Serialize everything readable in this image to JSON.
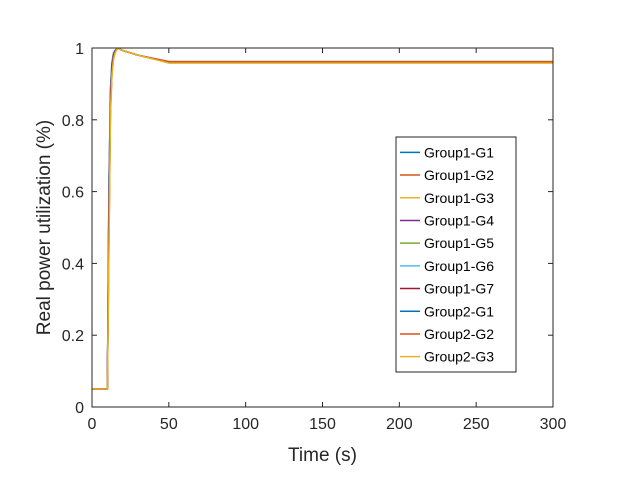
{
  "chart_data": {
    "type": "line",
    "title": "",
    "xlabel": "Time (s)",
    "ylabel": "Real power utilization (%)",
    "xlim": [
      0,
      300
    ],
    "ylim": [
      0,
      1
    ],
    "xticks": [
      0,
      50,
      100,
      150,
      200,
      250,
      300
    ],
    "yticks": [
      0,
      0.2,
      0.4,
      0.6,
      0.8,
      1
    ],
    "ytick_labels": [
      "0",
      "0.2",
      "0.4",
      "0.6",
      "0.8",
      "1"
    ],
    "grid": false,
    "legend_position": "right",
    "series": [
      {
        "name": "Group1-G1",
        "color": "#0072BD",
        "x": [
          0,
          10,
          11,
          12,
          13,
          14,
          15,
          16,
          17,
          18,
          20,
          30,
          50,
          300
        ],
        "y": [
          0.05,
          0.05,
          0.6,
          0.88,
          0.96,
          0.985,
          0.993,
          0.997,
          0.999,
          0.997,
          0.993,
          0.98,
          0.96,
          0.96
        ]
      },
      {
        "name": "Group1-G2",
        "color": "#D95319",
        "x": [
          0,
          10,
          11,
          12,
          13,
          14,
          15,
          16,
          17,
          18,
          20,
          30,
          50,
          300
        ],
        "y": [
          0.05,
          0.05,
          0.55,
          0.86,
          0.95,
          0.98,
          0.991,
          0.996,
          0.999,
          0.997,
          0.993,
          0.98,
          0.96,
          0.96
        ]
      },
      {
        "name": "Group1-G3",
        "color": "#EDB120",
        "x": [
          0,
          10,
          11,
          12,
          13,
          14,
          15,
          16,
          17,
          18,
          20,
          30,
          50,
          300
        ],
        "y": [
          0.05,
          0.05,
          0.5,
          0.84,
          0.94,
          0.975,
          0.99,
          0.996,
          0.999,
          0.997,
          0.993,
          0.98,
          0.96,
          0.96
        ]
      },
      {
        "name": "Group1-G4",
        "color": "#7E2F8E",
        "x": [
          0,
          10,
          11,
          12,
          13,
          14,
          15,
          16,
          17,
          18,
          20,
          30,
          50,
          300
        ],
        "y": [
          0.05,
          0.05,
          0.58,
          0.87,
          0.955,
          0.982,
          0.992,
          0.997,
          0.999,
          0.997,
          0.993,
          0.98,
          0.96,
          0.96
        ]
      },
      {
        "name": "Group1-G5",
        "color": "#77AC30",
        "x": [
          0,
          10,
          11,
          12,
          13,
          14,
          15,
          16,
          17,
          18,
          20,
          30,
          50,
          300
        ],
        "y": [
          0.05,
          0.05,
          0.52,
          0.85,
          0.945,
          0.978,
          0.99,
          0.996,
          0.999,
          0.997,
          0.993,
          0.98,
          0.96,
          0.96
        ]
      },
      {
        "name": "Group1-G6",
        "color": "#4DBEEE",
        "x": [
          0,
          10,
          11,
          12,
          13,
          14,
          15,
          16,
          17,
          18,
          20,
          30,
          50,
          300
        ],
        "y": [
          0.05,
          0.05,
          0.62,
          0.89,
          0.962,
          0.986,
          0.994,
          0.997,
          0.999,
          0.997,
          0.993,
          0.98,
          0.96,
          0.96
        ]
      },
      {
        "name": "Group1-G7",
        "color": "#A2142F",
        "x": [
          0,
          10,
          11,
          12,
          13,
          14,
          15,
          16,
          17,
          18,
          20,
          30,
          50,
          300
        ],
        "y": [
          0.05,
          0.05,
          0.56,
          0.865,
          0.952,
          0.981,
          0.992,
          0.996,
          0.999,
          0.997,
          0.993,
          0.98,
          0.96,
          0.96
        ]
      },
      {
        "name": "Group2-G1",
        "color": "#0072BD",
        "x": [
          0,
          10,
          11,
          12,
          13,
          14,
          15,
          16,
          17,
          18,
          20,
          30,
          50,
          300
        ],
        "y": [
          0.05,
          0.05,
          0.48,
          0.83,
          0.935,
          0.972,
          0.988,
          0.995,
          0.999,
          0.997,
          0.993,
          0.98,
          0.962,
          0.962
        ]
      },
      {
        "name": "Group2-G2",
        "color": "#D95319",
        "x": [
          0,
          10,
          11,
          12,
          13,
          14,
          15,
          16,
          17,
          18,
          20,
          30,
          50,
          300
        ],
        "y": [
          0.05,
          0.05,
          0.45,
          0.82,
          0.93,
          0.97,
          0.987,
          0.995,
          0.999,
          0.997,
          0.993,
          0.98,
          0.962,
          0.962
        ]
      },
      {
        "name": "Group2-G3",
        "color": "#EDB120",
        "x": [
          0,
          10,
          11,
          12,
          13,
          14,
          15,
          16,
          17,
          18,
          20,
          30,
          50,
          300
        ],
        "y": [
          0.05,
          0.05,
          0.42,
          0.81,
          0.925,
          0.968,
          0.986,
          0.994,
          0.999,
          0.997,
          0.993,
          0.98,
          0.958,
          0.958
        ]
      }
    ]
  }
}
